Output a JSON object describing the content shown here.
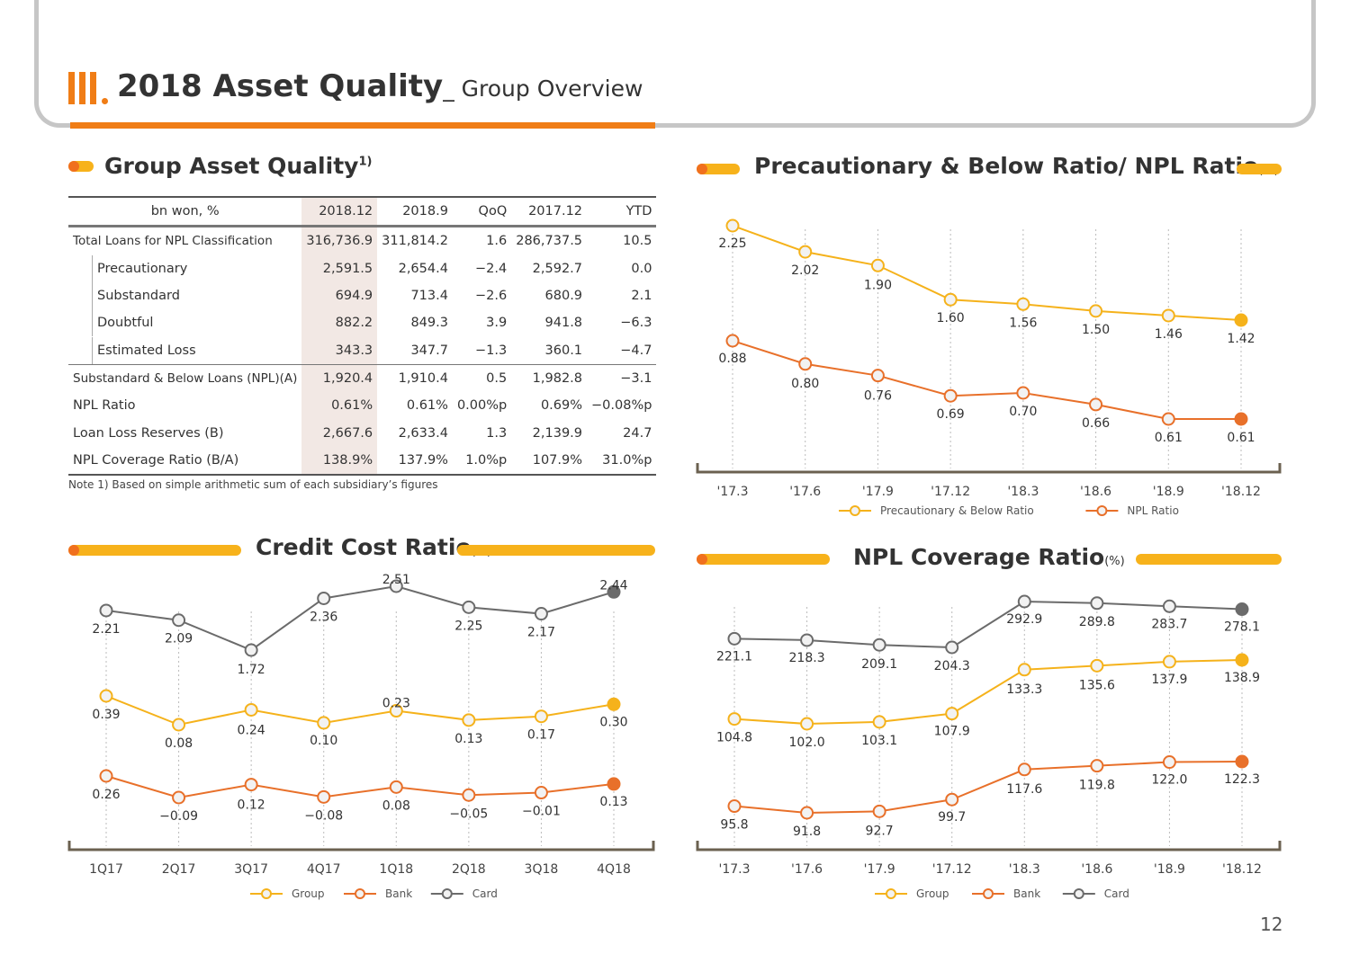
{
  "header": {
    "title": "2018 Asset Quality",
    "subtitle": "_ Group Overview"
  },
  "page_number": "12",
  "colors": {
    "group": "#f5b21b",
    "bank": "#e8702a",
    "card": "#6b6b6b",
    "accent": "#f07d16"
  },
  "section1": {
    "title": "Group Asset Quality",
    "footnote_mark": "1)",
    "columns": [
      "bn won, %",
      "2018.12",
      "2018.9",
      "QoQ",
      "2017.12",
      "YTD"
    ],
    "rows": [
      {
        "label": "Total Loans for NPL Classification",
        "sub": false,
        "cells": [
          "316,736.9",
          "311,814.2",
          "1.6",
          "286,737.5",
          "10.5"
        ]
      },
      {
        "label": "Precautionary",
        "sub": true,
        "cells": [
          "2,591.5",
          "2,654.4",
          "−2.4",
          "2,592.7",
          "0.0"
        ]
      },
      {
        "label": "Substandard",
        "sub": true,
        "cells": [
          "694.9",
          "713.4",
          "−2.6",
          "680.9",
          "2.1"
        ]
      },
      {
        "label": "Doubtful",
        "sub": true,
        "cells": [
          "882.2",
          "849.3",
          "3.9",
          "941.8",
          "−6.3"
        ]
      },
      {
        "label": "Estimated Loss",
        "sub": true,
        "cells": [
          "343.3",
          "347.7",
          "−1.3",
          "360.1",
          "−4.7"
        ]
      },
      {
        "label": "Substandard & Below Loans (NPL)(A)",
        "sub": false,
        "cells": [
          "1,920.4",
          "1,910.4",
          "0.5",
          "1,982.8",
          "−3.1"
        ]
      },
      {
        "label": "NPL Ratio",
        "sub": false,
        "cells": [
          "0.61%",
          "0.61%",
          "0.00%p",
          "0.69%",
          "−0.08%p"
        ]
      },
      {
        "label": "Loan Loss Reserves (B)",
        "sub": false,
        "cells": [
          "2,667.6",
          "2,633.4",
          "1.3",
          "2,139.9",
          "24.7"
        ]
      },
      {
        "label": "NPL Coverage Ratio (B/A)",
        "sub": false,
        "cells": [
          "138.9%",
          "137.9%",
          "1.0%p",
          "107.9%",
          "31.0%p"
        ]
      }
    ],
    "note": "Note 1) Based on simple arithmetic sum of each subsidiary’s figures"
  },
  "chart_data": [
    {
      "type": "line",
      "title": "Precautionary & Below Ratio/ NPL Ratio",
      "unit": "(%)",
      "categories": [
        "'17.3",
        "'17.6",
        "'17.9",
        "'17.12",
        "'18.3",
        "'18.6",
        "'18.9",
        "'18.12"
      ],
      "series": [
        {
          "name": "Precautionary & Below Ratio",
          "color": "#f5b21b",
          "values": [
            2.25,
            2.02,
            1.9,
            1.6,
            1.56,
            1.5,
            1.46,
            1.42
          ],
          "labels": [
            "2.25",
            "2.02",
            "1.90",
            "1.60",
            "1.56",
            "1.50",
            "1.46",
            "1.42"
          ]
        },
        {
          "name": "NPL Ratio",
          "color": "#e8702a",
          "values": [
            0.88,
            0.8,
            0.76,
            0.69,
            0.7,
            0.66,
            0.61,
            0.61
          ],
          "labels": [
            "0.88",
            "0.80",
            "0.76",
            "0.69",
            "0.70",
            "0.66",
            "0.61",
            "0.61"
          ]
        }
      ],
      "legend": "bottom"
    },
    {
      "type": "line",
      "title": "Credit Cost Ratio",
      "unit": "(%)",
      "categories": [
        "1Q17",
        "2Q17",
        "3Q17",
        "4Q17",
        "1Q18",
        "2Q18",
        "3Q18",
        "4Q18"
      ],
      "series": [
        {
          "name": "Group",
          "color": "#f5b21b",
          "values": [
            0.39,
            0.08,
            0.24,
            0.1,
            0.23,
            0.13,
            0.17,
            0.3
          ],
          "labels": [
            "0.39",
            "0.08",
            "0.24",
            "0.10",
            "0.23",
            "0.13",
            "0.17",
            "0.30"
          ]
        },
        {
          "name": "Bank",
          "color": "#e8702a",
          "values": [
            0.26,
            -0.09,
            0.12,
            -0.08,
            0.08,
            -0.05,
            -0.01,
            0.13
          ],
          "labels": [
            "0.26",
            "−0.09",
            "0.12",
            "−0.08",
            "0.08",
            "−0.05",
            "−0.01",
            "0.13"
          ]
        },
        {
          "name": "Card",
          "color": "#6b6b6b",
          "values": [
            2.21,
            2.09,
            1.72,
            2.36,
            2.51,
            2.25,
            2.17,
            2.44
          ],
          "labels": [
            "2.21",
            "2.09",
            "1.72",
            "2.36",
            "2.51",
            "2.25",
            "2.17",
            "2.44"
          ]
        }
      ],
      "legend": "bottom"
    },
    {
      "type": "line",
      "title": "NPL Coverage Ratio",
      "unit": "(%)",
      "categories": [
        "'17.3",
        "'17.6",
        "'17.9",
        "'17.12",
        "'18.3",
        "'18.6",
        "'18.9",
        "'18.12"
      ],
      "series": [
        {
          "name": "Group",
          "color": "#f5b21b",
          "values": [
            104.8,
            102.0,
            103.1,
            107.9,
            133.3,
            135.6,
            137.9,
            138.9
          ],
          "labels": [
            "104.8",
            "102.0",
            "103.1",
            "107.9",
            "133.3",
            "135.6",
            "137.9",
            "138.9"
          ]
        },
        {
          "name": "Bank",
          "color": "#e8702a",
          "values": [
            95.8,
            91.8,
            92.7,
            99.7,
            117.6,
            119.8,
            122.0,
            122.3
          ],
          "labels": [
            "95.8",
            "91.8",
            "92.7",
            "99.7",
            "117.6",
            "119.8",
            "122.0",
            "122.3"
          ]
        },
        {
          "name": "Card",
          "color": "#6b6b6b",
          "values": [
            221.1,
            218.3,
            209.1,
            204.3,
            292.9,
            289.8,
            283.7,
            278.1
          ],
          "labels": [
            "221.1",
            "218.3",
            "209.1",
            "204.3",
            "292.9",
            "289.8",
            "283.7",
            "278.1"
          ]
        }
      ],
      "legend": "bottom"
    }
  ]
}
